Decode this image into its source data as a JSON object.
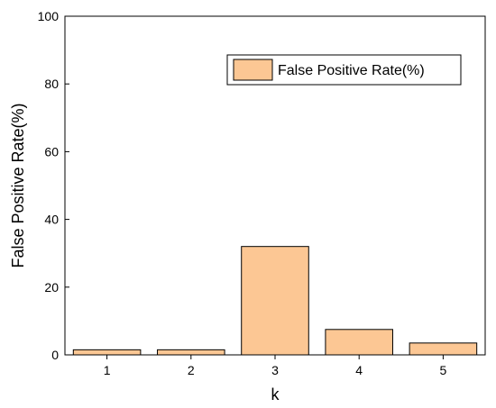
{
  "chart_data": {
    "type": "bar",
    "categories": [
      "1",
      "2",
      "3",
      "4",
      "5"
    ],
    "series": [
      {
        "name": "False Positive Rate(%)",
        "values": [
          1.5,
          1.5,
          32,
          7.5,
          3.5
        ]
      }
    ],
    "xlabel": "k",
    "ylabel": "False Positive Rate(%)",
    "ylim": [
      0,
      100
    ],
    "yticks": [
      0,
      20,
      40,
      60,
      80,
      100
    ],
    "grid": false,
    "legend_position": "top-right",
    "bar_color": "#fcc794",
    "edge_color": "#000000"
  }
}
